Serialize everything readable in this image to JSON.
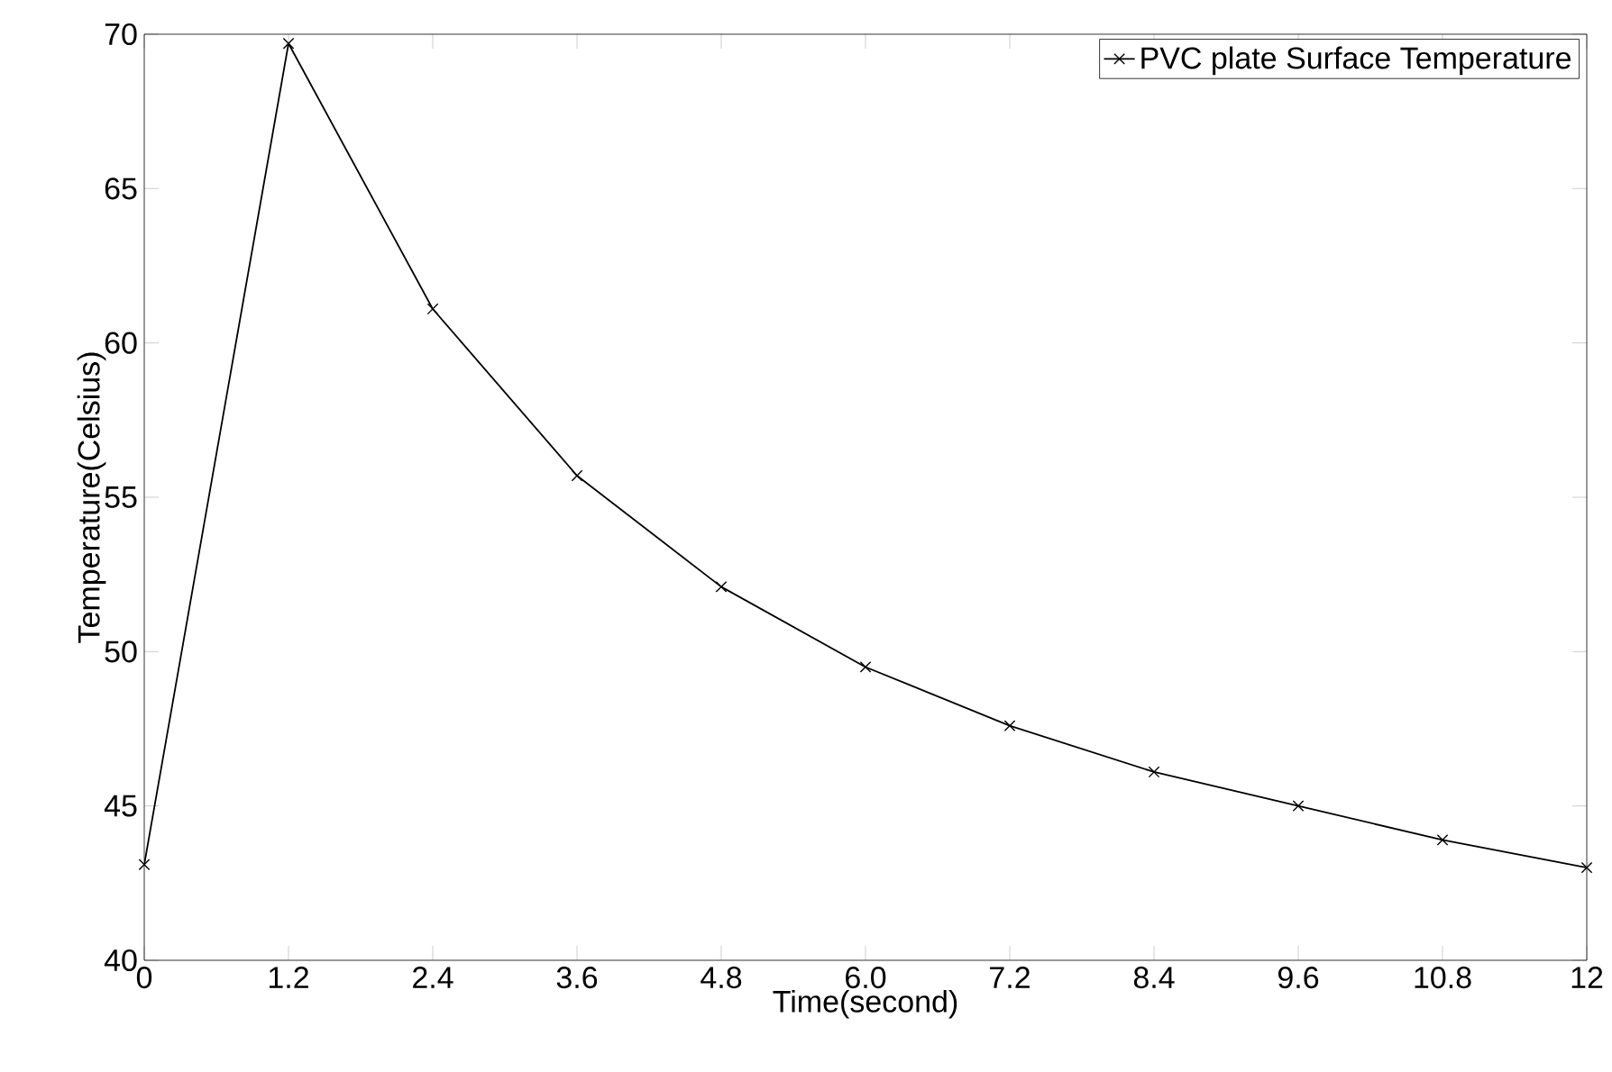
{
  "chart_data": {
    "type": "line",
    "xlabel": "Time(second)",
    "ylabel": "Temperature(Celsius)",
    "x": [
      0,
      1.2,
      2.4,
      3.6,
      4.8,
      6.0,
      7.2,
      8.4,
      9.6,
      10.8,
      12
    ],
    "series": [
      {
        "name": "PVC plate Surface Temperature",
        "color": "#000000",
        "values": [
          43.1,
          69.7,
          61.1,
          55.7,
          52.1,
          49.5,
          47.6,
          46.1,
          45.0,
          43.9,
          43.0
        ]
      }
    ],
    "xlim": [
      0,
      12
    ],
    "ylim": [
      40,
      70
    ],
    "xticks": [
      0,
      1.2,
      2.4,
      3.6,
      4.8,
      {
        "value": 6,
        "label": "6.0"
      },
      7.2,
      8.4,
      9.6,
      10.8,
      12
    ],
    "yticks": [
      40,
      45,
      50,
      55,
      60,
      65,
      70
    ],
    "grid": false,
    "legend": "top right",
    "marker": "cross",
    "line_style": "solid"
  }
}
